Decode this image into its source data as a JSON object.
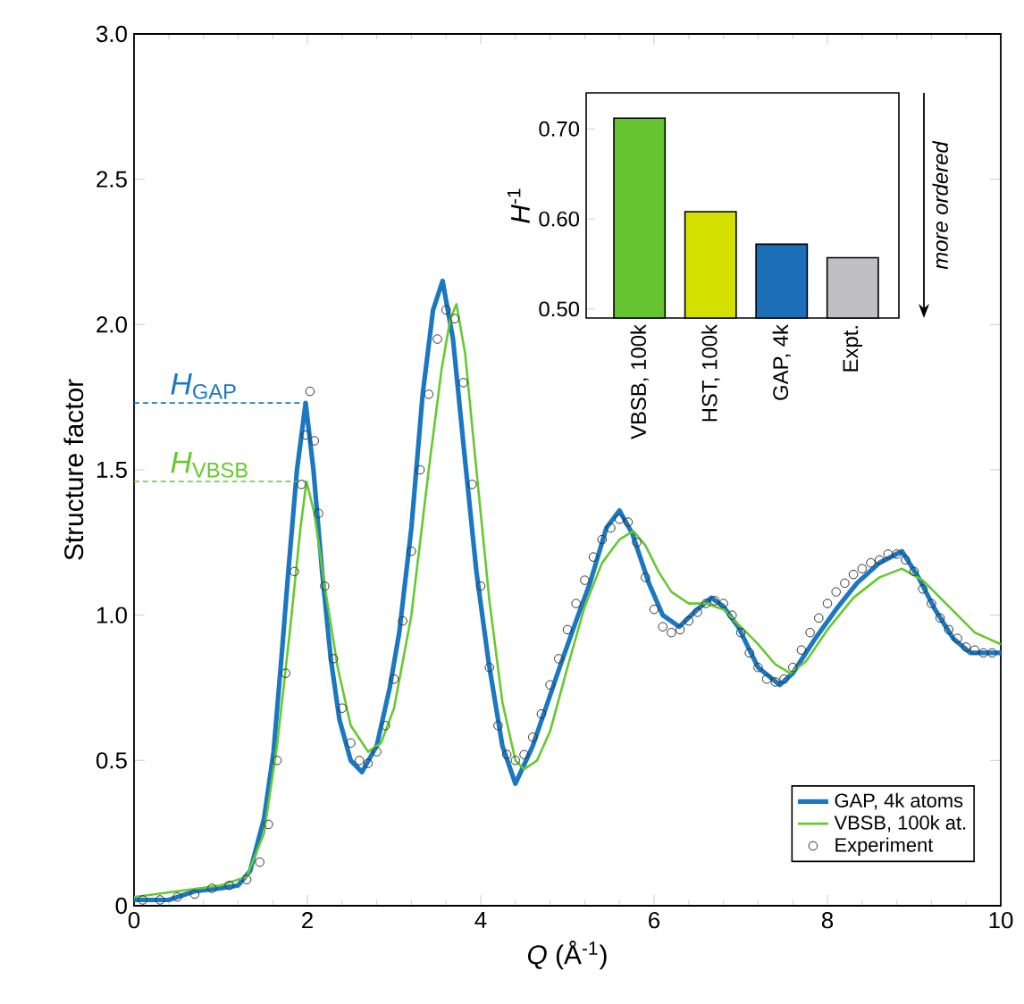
{
  "chart_data": [
    {
      "type": "line",
      "xlabel": "*Q* (Å$^{-1}$)",
      "ylabel": "Structure factor",
      "xlim": [
        0,
        10
      ],
      "xticks": [
        0,
        2,
        4,
        6,
        8,
        10
      ],
      "ylim": [
        0,
        3
      ],
      "yticks": [
        0,
        0.5,
        {
          "value": 1,
          "label": "1.0"
        },
        1.5,
        {
          "value": 2,
          "label": "2.0"
        },
        2.5,
        {
          "value": 3,
          "label": "3.0"
        }
      ],
      "legend": "bottom right",
      "series": [
        {
          "name": "GAP, 4k atoms",
          "color": "#1a78c2",
          "x": [
            0,
            0.4,
            0.7,
            1.0,
            1.2,
            1.34,
            1.5,
            1.61,
            1.7,
            1.78,
            1.88,
            1.98,
            2.07,
            2.17,
            2.27,
            2.37,
            2.5,
            2.63,
            2.8,
            2.95,
            3.06,
            3.2,
            3.33,
            3.45,
            3.56,
            3.68,
            3.81,
            3.95,
            4.09,
            4.25,
            4.4,
            4.6,
            4.75,
            4.91,
            5.1,
            5.26,
            5.45,
            5.6,
            5.75,
            5.94,
            6.1,
            6.29,
            6.5,
            6.66,
            6.8,
            6.97,
            7.2,
            7.45,
            7.6,
            7.86,
            8.1,
            8.34,
            8.6,
            8.86,
            9.05,
            9.24,
            9.45,
            9.65,
            10
          ],
          "values": [
            0.02,
            0.02,
            0.05,
            0.06,
            0.07,
            0.12,
            0.3,
            0.53,
            0.85,
            1.15,
            1.5,
            1.73,
            1.5,
            1.15,
            0.85,
            0.64,
            0.5,
            0.46,
            0.55,
            0.75,
            0.94,
            1.3,
            1.76,
            2.05,
            2.15,
            1.95,
            1.56,
            1.15,
            0.84,
            0.55,
            0.42,
            0.55,
            0.68,
            0.82,
            0.98,
            1.11,
            1.3,
            1.36,
            1.28,
            1.11,
            1.0,
            0.96,
            1.02,
            1.06,
            1.03,
            0.96,
            0.82,
            0.76,
            0.8,
            0.92,
            1.02,
            1.11,
            1.18,
            1.22,
            1.13,
            1.02,
            0.92,
            0.87,
            0.87
          ]
        },
        {
          "name": "VBSB, 100k at.",
          "color": "#66c92e",
          "x": [
            0,
            0.5,
            1.0,
            1.3,
            1.5,
            1.65,
            1.8,
            1.92,
            1.99,
            2.08,
            2.2,
            2.35,
            2.5,
            2.7,
            2.85,
            3.0,
            3.2,
            3.4,
            3.55,
            3.65,
            3.72,
            3.82,
            3.95,
            4.1,
            4.25,
            4.4,
            4.5,
            4.65,
            4.8,
            5.0,
            5.2,
            5.4,
            5.6,
            5.76,
            5.9,
            6.05,
            6.2,
            6.4,
            6.6,
            6.8,
            7.0,
            7.2,
            7.4,
            7.57,
            7.75,
            8.0,
            8.3,
            8.6,
            8.86,
            9.1,
            9.4,
            9.7,
            10
          ],
          "values": [
            0.03,
            0.05,
            0.07,
            0.1,
            0.25,
            0.55,
            0.95,
            1.3,
            1.46,
            1.35,
            1.1,
            0.82,
            0.62,
            0.53,
            0.56,
            0.68,
            1.0,
            1.5,
            1.85,
            2.02,
            2.07,
            1.9,
            1.5,
            1.05,
            0.7,
            0.5,
            0.47,
            0.5,
            0.6,
            0.82,
            1.03,
            1.18,
            1.26,
            1.29,
            1.24,
            1.15,
            1.08,
            1.04,
            1.04,
            1.02,
            0.96,
            0.9,
            0.83,
            0.8,
            0.84,
            0.95,
            1.06,
            1.13,
            1.16,
            1.12,
            1.03,
            0.94,
            0.9
          ]
        },
        {
          "name": "Experiment",
          "type": "scatter",
          "marker": "circle",
          "color": "#333333",
          "x": [
            0.1,
            0.3,
            0.5,
            0.7,
            0.9,
            1.1,
            1.3,
            1.45,
            1.55,
            1.65,
            1.75,
            1.85,
            1.93,
            1.98,
            2.03,
            2.08,
            2.13,
            2.2,
            2.3,
            2.4,
            2.5,
            2.6,
            2.7,
            2.8,
            2.9,
            3.0,
            3.1,
            3.2,
            3.3,
            3.4,
            3.5,
            3.6,
            3.7,
            3.8,
            3.9,
            4.0,
            4.1,
            4.2,
            4.3,
            4.4,
            4.5,
            4.6,
            4.7,
            4.8,
            4.9,
            5.0,
            5.1,
            5.2,
            5.3,
            5.4,
            5.5,
            5.6,
            5.7,
            5.8,
            5.9,
            6.0,
            6.1,
            6.2,
            6.3,
            6.4,
            6.5,
            6.6,
            6.7,
            6.8,
            6.9,
            7.0,
            7.1,
            7.2,
            7.3,
            7.4,
            7.5,
            7.6,
            7.7,
            7.8,
            7.9,
            8.0,
            8.1,
            8.2,
            8.3,
            8.4,
            8.5,
            8.6,
            8.7,
            8.8,
            8.9,
            9.0,
            9.1,
            9.2,
            9.3,
            9.4,
            9.5,
            9.6,
            9.7,
            9.8,
            9.9
          ],
          "values": [
            0.02,
            0.02,
            0.03,
            0.04,
            0.06,
            0.07,
            0.09,
            0.15,
            0.28,
            0.5,
            0.8,
            1.15,
            1.45,
            1.62,
            1.77,
            1.6,
            1.35,
            1.1,
            0.85,
            0.68,
            0.56,
            0.5,
            0.49,
            0.53,
            0.62,
            0.78,
            0.98,
            1.22,
            1.5,
            1.76,
            1.95,
            2.05,
            2.02,
            1.8,
            1.45,
            1.1,
            0.82,
            0.62,
            0.52,
            0.5,
            0.52,
            0.58,
            0.66,
            0.76,
            0.85,
            0.95,
            1.04,
            1.12,
            1.2,
            1.26,
            1.3,
            1.33,
            1.32,
            1.25,
            1.13,
            1.02,
            0.96,
            0.94,
            0.95,
            0.98,
            1.01,
            1.04,
            1.05,
            1.04,
            1.0,
            0.94,
            0.87,
            0.82,
            0.78,
            0.77,
            0.78,
            0.82,
            0.88,
            0.94,
            0.99,
            1.04,
            1.08,
            1.11,
            1.14,
            1.16,
            1.18,
            1.19,
            1.21,
            1.21,
            1.19,
            1.15,
            1.09,
            1.04,
            0.99,
            0.95,
            0.92,
            0.89,
            0.88,
            0.87,
            0.87
          ]
        }
      ],
      "ref_lines": [
        {
          "axis": "y",
          "value": 1.73,
          "label": "*H*$_{GAP}$",
          "color": "#1a78c2",
          "line_style": "dashed"
        },
        {
          "axis": "y",
          "value": 1.46,
          "label": "*H*$_{VBSB}$",
          "color": "#66c92e",
          "line_style": "dashed"
        }
      ]
    },
    {
      "type": "bar",
      "ylabel": "*H*$^{-1}$",
      "categories": [
        "VBSB, 100k",
        "HST, 100k",
        "GAP, 4k",
        "Expt."
      ],
      "values": [
        0.712,
        0.608,
        0.572,
        0.557
      ],
      "colors": [
        "#66c430",
        "#d6e000",
        "#1a6fb8",
        "#c0c0c4"
      ],
      "ylim": [
        0.49,
        0.74
      ],
      "yticks": [
        {
          "value": 0.5,
          "label": "0.50"
        },
        {
          "value": 0.6,
          "label": "0.60"
        },
        {
          "value": 0.7,
          "label": "0.70"
        }
      ],
      "annotations": [
        "more ordered"
      ]
    }
  ]
}
